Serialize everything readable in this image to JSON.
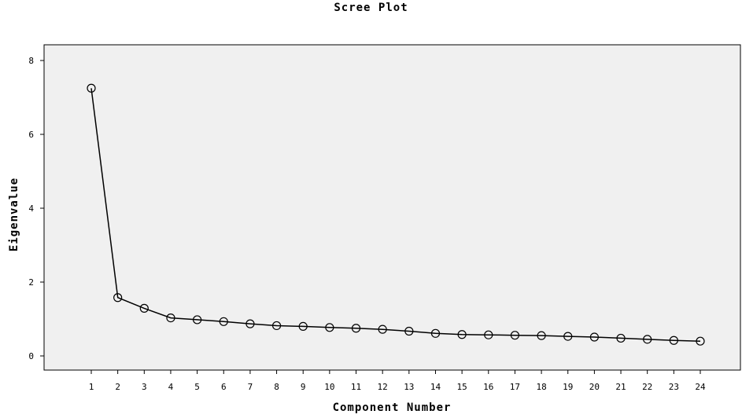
{
  "chart_data": {
    "type": "line",
    "title": "Scree Plot",
    "xlabel": "Component Number",
    "ylabel": "Eigenvalue",
    "x": [
      1,
      2,
      3,
      4,
      5,
      6,
      7,
      8,
      9,
      10,
      11,
      12,
      13,
      14,
      15,
      16,
      17,
      18,
      19,
      20,
      21,
      22,
      23,
      24
    ],
    "values": [
      7.25,
      1.58,
      1.29,
      1.03,
      0.98,
      0.93,
      0.87,
      0.82,
      0.8,
      0.77,
      0.75,
      0.72,
      0.67,
      0.61,
      0.58,
      0.57,
      0.56,
      0.55,
      0.53,
      0.51,
      0.48,
      0.45,
      0.42,
      0.4
    ],
    "ylim": [
      0,
      8
    ],
    "yticks": [
      0,
      2,
      4,
      6,
      8
    ],
    "xticks": [
      "1",
      "2",
      "3",
      "4",
      "5",
      "6",
      "7",
      "8",
      "9",
      "10",
      "11",
      "12",
      "13",
      "14",
      "15",
      "16",
      "17",
      "18",
      "19",
      "20",
      "21",
      "22",
      "23",
      "24"
    ],
    "grid": false,
    "plot_background": "#f0f0f0",
    "line_color": "#000000",
    "marker": "open-circle"
  }
}
